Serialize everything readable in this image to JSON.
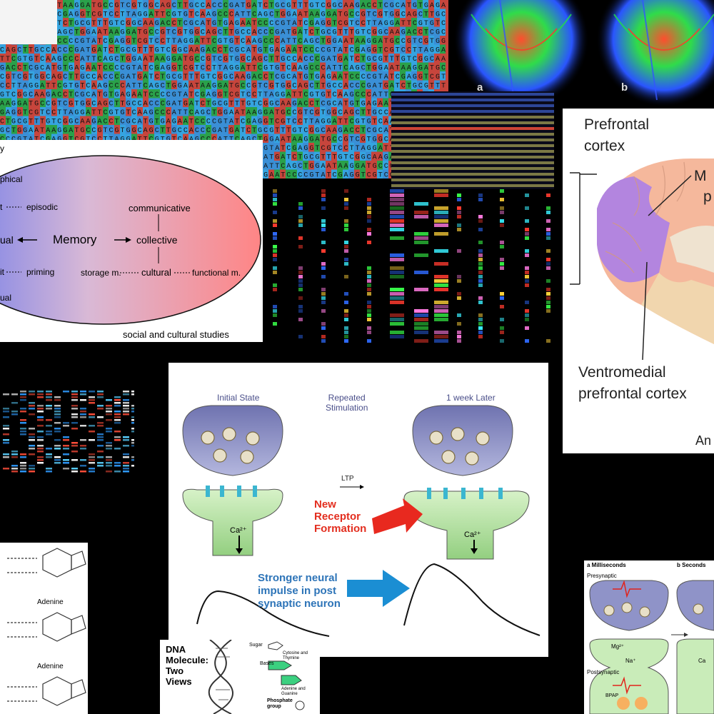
{
  "memory": {
    "center": "Memory",
    "communicative": "communicative",
    "collective": "collective",
    "cultural": "cultural",
    "storage": "storage m.",
    "functional": "functional m.",
    "episodic": "episodic",
    "priming": "priming",
    "phical": "phical",
    "ual": "ual",
    "t": "t",
    "it": "it",
    "ual2": "ual",
    "y": "y",
    "caption": "social and cultural studies"
  },
  "brain": {
    "prefrontal": [
      "Prefrontal",
      "cortex"
    ],
    "vmpfc": [
      "Ventromedial",
      "prefrontal cortex"
    ],
    "m": "M",
    "p": "p",
    "an": "An"
  },
  "tract": {
    "a": "a",
    "b": "b"
  },
  "ltp": {
    "initial": "Initial State",
    "repeated": [
      "Repeated",
      "Stimulation"
    ],
    "later": "1 week Later",
    "ltp_label": "LTP",
    "new_receptor": [
      "New",
      "Receptor",
      "Formation"
    ],
    "ca_left": "Ca²⁺",
    "ca_right": "Ca²⁺",
    "stronger": [
      "Stronger neural",
      "impulse in post",
      "synaptic neuron"
    ]
  },
  "bases": {
    "adenine": [
      "Adenine",
      "Adenine"
    ]
  },
  "dna": {
    "title": [
      "DNA",
      "Molecule:",
      "Two",
      "Views"
    ],
    "sugar": "Sugar",
    "cyt": [
      "Cytosine and",
      "Thymine"
    ],
    "bases": "Bases",
    "ade": [
      "Adenine and",
      "Guanine"
    ],
    "phosphate": [
      "Phosphate",
      "group"
    ]
  },
  "ms": {
    "a": "a Milliseconds",
    "b": "b Seconds",
    "pre": "Presynaptic",
    "post": "Postsynaptic",
    "mg": "Mg²⁺",
    "na": "Na⁺",
    "ca": "Ca",
    "bpap": "BPAP"
  },
  "colors": {
    "A": "#2aa14a",
    "C": "#3a8fd6",
    "G": "#c7453c",
    "T": "#35a4e0",
    "purple": "#a970d8",
    "synapse_top": "#8f93c8",
    "synapse_bottom": "#bfe6b1"
  },
  "seq_text": "CATTCAGCTGGAATAAGGATGCCGTCGTGGCAGCTTGCCACCCGATGATCTGCGTTTGTCGGCAAGACCTCGCATGTGAGAATCCCCGTATCGAGGTCGTCCTTAGGATTCGTGTCAAGCC"
}
